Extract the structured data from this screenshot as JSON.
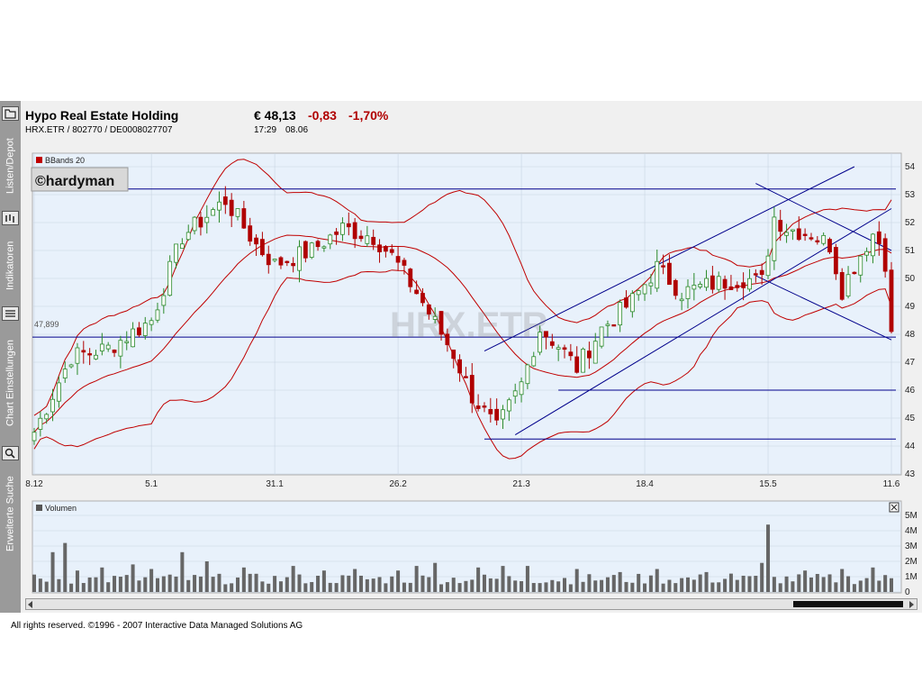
{
  "sidebar": {
    "items": [
      {
        "label": "Listen/Depot",
        "icon": "folder-icon"
      },
      {
        "label": "Indikatoren",
        "icon": "indicators-icon"
      },
      {
        "label": "Chart Einstellungen",
        "icon": "settings-list-icon"
      },
      {
        "label": "Erweiterte Suche",
        "icon": "search-icon"
      }
    ]
  },
  "header": {
    "name": "Hypo Real Estate Holding",
    "ids": "HRX.ETR  /  802770  /  DE0008027707",
    "price": "€ 48,13",
    "change": "-0,83",
    "change_pct": "-1,70%",
    "time": "17:29",
    "date": "08.06"
  },
  "colors": {
    "up": "#2a8a2a",
    "down": "#b00000",
    "band": "#c00000",
    "trend": "#00008b",
    "panel_bg": "#e8f1fb"
  },
  "footer": "All rights reserved. ©1996 - 2007 Interactive Data Managed Solutions AG",
  "chart_data": [
    {
      "type": "candlestick",
      "legend": "BBands 20",
      "watermark": "HRX.ETR",
      "copyright_label": "©hardyman",
      "price_marker": "47,899",
      "ylim": [
        43,
        54
      ],
      "y_ticks": [
        43,
        44,
        45,
        46,
        47,
        48,
        49,
        50,
        51,
        52,
        53,
        54
      ],
      "x_tick_labels": [
        "8.12",
        "5.1",
        "31.1",
        "26.2",
        "21.3",
        "18.4",
        "15.5",
        "11.6"
      ],
      "x_tick_index": [
        0,
        19,
        39,
        59,
        79,
        99,
        119,
        139
      ],
      "n_bars": 140,
      "horizontal_lines": [
        53.2,
        47.9,
        46.0,
        44.25
      ],
      "close_anchors": [
        [
          0,
          44.5
        ],
        [
          6,
          47.2
        ],
        [
          12,
          47.5
        ],
        [
          19,
          48.5
        ],
        [
          24,
          51.5
        ],
        [
          31,
          52.8
        ],
        [
          36,
          51.2
        ],
        [
          39,
          50.5
        ],
        [
          45,
          51.0
        ],
        [
          50,
          51.8
        ],
        [
          55,
          51.5
        ],
        [
          58,
          50.8
        ],
        [
          62,
          49.5
        ],
        [
          68,
          47.3
        ],
        [
          71,
          45.8
        ],
        [
          75,
          44.6
        ],
        [
          79,
          46.2
        ],
        [
          82,
          48.2
        ],
        [
          85,
          47.6
        ],
        [
          88,
          46.8
        ],
        [
          92,
          48.2
        ],
        [
          97,
          49.2
        ],
        [
          101,
          50.4
        ],
        [
          105,
          49.5
        ],
        [
          110,
          49.8
        ],
        [
          115,
          50.0
        ],
        [
          118,
          49.9
        ],
        [
          120,
          52.2
        ],
        [
          122,
          51.8
        ],
        [
          126,
          51.6
        ],
        [
          129,
          51.2
        ],
        [
          131,
          49.6
        ],
        [
          133,
          50.5
        ],
        [
          136,
          51.6
        ],
        [
          137,
          51.3
        ],
        [
          138,
          50.6
        ],
        [
          139,
          48.1
        ]
      ],
      "bollinger": {
        "period": 20,
        "k": 2
      },
      "trend_lines": [
        [
          [
            73,
            47.4
          ],
          [
            133,
            54.0
          ]
        ],
        [
          [
            78,
            44.4
          ],
          [
            139,
            52.5
          ]
        ],
        [
          [
            117,
            53.4
          ],
          [
            139,
            51.0
          ]
        ],
        [
          [
            117,
            50.1
          ],
          [
            139,
            47.8
          ]
        ]
      ]
    },
    {
      "type": "bar",
      "legend": "Volumen",
      "y_ticks": [
        "5M",
        "4M",
        "3M",
        "2M",
        "1M",
        "0"
      ],
      "ylim": [
        0,
        5000000
      ],
      "spikes": [
        [
          3,
          2600000
        ],
        [
          5,
          3200000
        ],
        [
          7,
          1400000
        ],
        [
          11,
          1600000
        ],
        [
          16,
          1800000
        ],
        [
          19,
          1500000
        ],
        [
          24,
          2600000
        ],
        [
          28,
          2000000
        ],
        [
          34,
          1600000
        ],
        [
          42,
          1700000
        ],
        [
          47,
          1400000
        ],
        [
          52,
          1500000
        ],
        [
          59,
          1400000
        ],
        [
          62,
          1700000
        ],
        [
          65,
          1900000
        ],
        [
          72,
          1600000
        ],
        [
          76,
          1700000
        ],
        [
          80,
          1700000
        ],
        [
          88,
          1500000
        ],
        [
          95,
          1300000
        ],
        [
          101,
          1500000
        ],
        [
          109,
          1300000
        ],
        [
          113,
          1200000
        ],
        [
          118,
          1900000
        ],
        [
          119,
          4400000
        ],
        [
          125,
          1400000
        ],
        [
          131,
          1500000
        ],
        [
          136,
          1600000
        ]
      ]
    }
  ]
}
